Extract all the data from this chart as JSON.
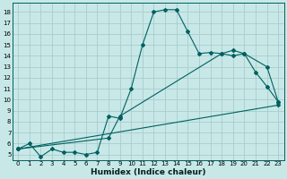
{
  "xlabel": "Humidex (Indice chaleur)",
  "bg_color": "#c8e8e8",
  "grid_color": "#a8cccc",
  "line_color": "#006060",
  "xlim": [
    -0.5,
    23.5
  ],
  "ylim": [
    4.5,
    18.8
  ],
  "xticks": [
    0,
    1,
    2,
    3,
    4,
    5,
    6,
    7,
    8,
    9,
    10,
    11,
    12,
    13,
    14,
    15,
    16,
    17,
    18,
    19,
    20,
    21,
    22,
    23
  ],
  "yticks": [
    5,
    6,
    7,
    8,
    9,
    10,
    11,
    12,
    13,
    14,
    15,
    16,
    17,
    18
  ],
  "line1_x": [
    0,
    1,
    2,
    3,
    4,
    5,
    6,
    7,
    8,
    9,
    10,
    11,
    12,
    13,
    14,
    15,
    16,
    17,
    18,
    19,
    20,
    21,
    22,
    23
  ],
  "line1_y": [
    5.5,
    6.0,
    4.8,
    5.5,
    5.2,
    5.2,
    5.0,
    5.2,
    8.5,
    8.3,
    11.0,
    15.0,
    18.0,
    18.2,
    18.2,
    16.2,
    14.2,
    14.3,
    14.2,
    14.0,
    14.2,
    12.5,
    11.2,
    9.8
  ],
  "line2_x": [
    0,
    8,
    9,
    18,
    19,
    20,
    22,
    23
  ],
  "line2_y": [
    5.5,
    6.5,
    8.5,
    14.2,
    14.5,
    14.2,
    13.0,
    9.8
  ],
  "line3_x": [
    0,
    23
  ],
  "line3_y": [
    5.5,
    9.5
  ],
  "markersize": 2.0,
  "linewidth": 0.8,
  "tick_fontsize": 5.0,
  "xlabel_fontsize": 6.5
}
